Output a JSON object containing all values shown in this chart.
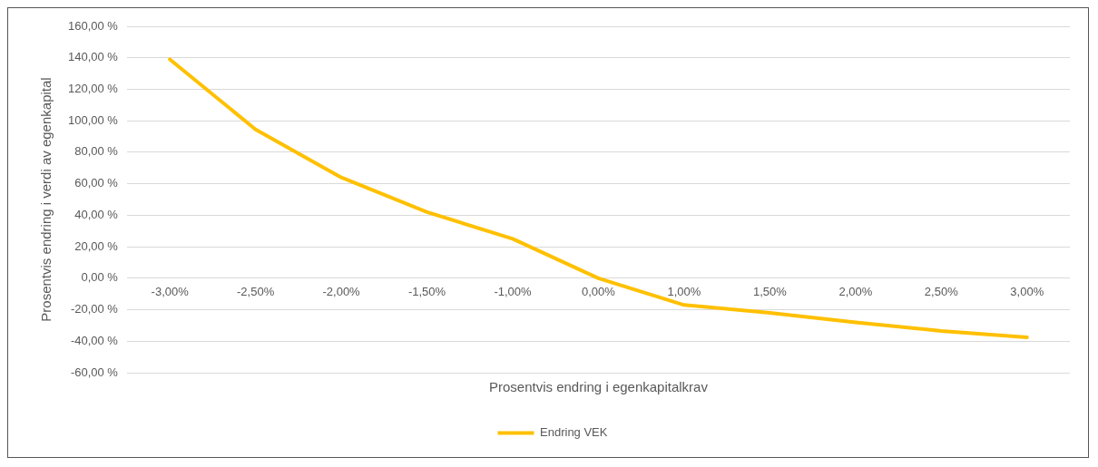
{
  "chart_data": {
    "type": "line",
    "xlabel": "Prosentvis endring i egenkapitalkrav",
    "ylabel": "Prosentvis endring i verdi av egenkapital",
    "categories": [
      "-3,00%",
      "-2,50%",
      "-2,00%",
      "-1,50%",
      "-1,00%",
      "0,00%",
      "1,00%",
      "1,50%",
      "2,00%",
      "2,50%",
      "3,00%"
    ],
    "series": [
      {
        "name": "Endring VEK",
        "color": "#ffc000",
        "values": [
          139,
          94.5,
          64,
          42,
          25,
          0,
          -17,
          -22,
          -28,
          -33.5,
          -37.5
        ]
      }
    ],
    "ylim": [
      -60,
      160
    ],
    "yticks": [
      {
        "value": -60,
        "label": "-60,00 %"
      },
      {
        "value": -40,
        "label": "-40,00 %"
      },
      {
        "value": -20,
        "label": "-20,00 %"
      },
      {
        "value": 0,
        "label": "0,00 %"
      },
      {
        "value": 20,
        "label": "20,00 %"
      },
      {
        "value": 40,
        "label": "40,00 %"
      },
      {
        "value": 60,
        "label": "60,00 %"
      },
      {
        "value": 80,
        "label": "80,00 %"
      },
      {
        "value": 100,
        "label": "100,00 %"
      },
      {
        "value": 120,
        "label": "120,00 %"
      },
      {
        "value": 140,
        "label": "140,00 %"
      },
      {
        "value": 160,
        "label": "160,00 %"
      }
    ],
    "grid": "y",
    "legend": "bottom",
    "marker": "none",
    "line_style": "solid"
  }
}
